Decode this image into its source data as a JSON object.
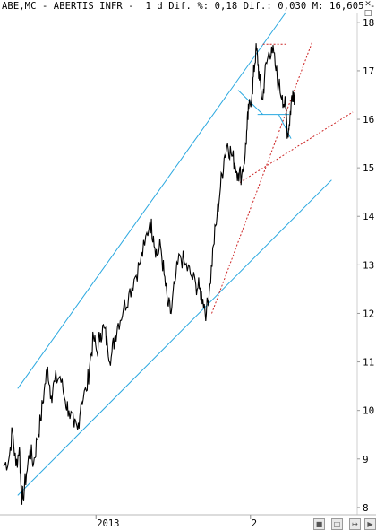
{
  "header": {
    "title": "ABE,MC - ABERTIS INFR -  1 d Dif. %: 0,18 Dif.: 0,030 M: 16,605 -"
  },
  "window_controls": {
    "restore_icon": "restore-icon",
    "close_icon": "close-icon"
  },
  "bottom_toolbar": {
    "icons": [
      "chart-settings-icon",
      "save-icon",
      "pin-icon",
      "scroll-arrow-icon"
    ]
  },
  "colors": {
    "price": "#000000",
    "channel": "#2aa8e0",
    "trendline": "#cc2222",
    "tick_label": "#000000"
  },
  "chart_data": {
    "type": "line",
    "title": "ABE,MC - ABERTIS INFR",
    "xlabel": "",
    "ylabel": "",
    "y_ticks": [
      8,
      9,
      10,
      11,
      12,
      13,
      14,
      15,
      16,
      17,
      18
    ],
    "ylim": [
      7.85,
      18.2
    ],
    "x_tick_labels": [
      {
        "label": "2013",
        "t": 0.262
      },
      {
        "label": "2",
        "t": 0.7
      }
    ],
    "series": [
      {
        "points": [
          [
            0.0,
            8.85
          ],
          [
            0.015,
            9.0
          ],
          [
            0.025,
            9.6
          ],
          [
            0.035,
            8.85
          ],
          [
            0.045,
            9.25
          ],
          [
            0.05,
            8.3
          ],
          [
            0.055,
            8.2
          ],
          [
            0.065,
            8.7
          ],
          [
            0.075,
            9.2
          ],
          [
            0.085,
            8.9
          ],
          [
            0.095,
            9.4
          ],
          [
            0.105,
            9.8
          ],
          [
            0.115,
            10.4
          ],
          [
            0.125,
            10.9
          ],
          [
            0.135,
            10.3
          ],
          [
            0.145,
            10.6
          ],
          [
            0.16,
            10.7
          ],
          [
            0.175,
            10.2
          ],
          [
            0.185,
            10.0
          ],
          [
            0.2,
            9.65
          ],
          [
            0.21,
            9.6
          ],
          [
            0.22,
            10.2
          ],
          [
            0.235,
            10.4
          ],
          [
            0.245,
            11.0
          ],
          [
            0.255,
            11.5
          ],
          [
            0.265,
            11.2
          ],
          [
            0.275,
            11.6
          ],
          [
            0.285,
            11.7
          ],
          [
            0.295,
            11.3
          ],
          [
            0.305,
            11.1
          ],
          [
            0.315,
            11.5
          ],
          [
            0.325,
            11.8
          ],
          [
            0.34,
            12.1
          ],
          [
            0.355,
            12.4
          ],
          [
            0.37,
            12.7
          ],
          [
            0.385,
            13.0
          ],
          [
            0.4,
            13.4
          ],
          [
            0.415,
            13.9
          ],
          [
            0.425,
            13.6
          ],
          [
            0.435,
            13.2
          ],
          [
            0.445,
            13.4
          ],
          [
            0.455,
            12.8
          ],
          [
            0.465,
            12.2
          ],
          [
            0.475,
            12.0
          ],
          [
            0.485,
            12.6
          ],
          [
            0.5,
            13.2
          ],
          [
            0.515,
            13.0
          ],
          [
            0.53,
            12.8
          ],
          [
            0.545,
            12.6
          ],
          [
            0.555,
            12.5
          ],
          [
            0.565,
            12.3
          ],
          [
            0.575,
            12.0
          ],
          [
            0.585,
            12.6
          ],
          [
            0.595,
            13.4
          ],
          [
            0.605,
            14.0
          ],
          [
            0.615,
            14.6
          ],
          [
            0.625,
            15.2
          ],
          [
            0.635,
            15.5
          ],
          [
            0.645,
            15.3
          ],
          [
            0.655,
            15.1
          ],
          [
            0.665,
            14.9
          ],
          [
            0.675,
            14.85
          ],
          [
            0.685,
            15.3
          ],
          [
            0.69,
            15.8
          ],
          [
            0.695,
            16.2
          ],
          [
            0.705,
            16.6
          ],
          [
            0.71,
            17.0
          ],
          [
            0.715,
            17.4
          ],
          [
            0.72,
            17.3
          ],
          [
            0.725,
            16.8
          ],
          [
            0.735,
            16.4
          ],
          [
            0.74,
            16.9
          ],
          [
            0.75,
            17.3
          ],
          [
            0.76,
            17.5
          ],
          [
            0.77,
            17.1
          ],
          [
            0.78,
            16.7
          ],
          [
            0.79,
            16.5
          ],
          [
            0.8,
            16.2
          ],
          [
            0.805,
            15.7
          ],
          [
            0.81,
            15.9
          ],
          [
            0.815,
            16.3
          ],
          [
            0.82,
            16.6
          ],
          [
            0.825,
            16.5
          ]
        ]
      }
    ],
    "annotations": [
      {
        "kind": "channel_line",
        "color": "#2aa8e0",
        "from": [
          0.04,
          10.45
        ],
        "to": [
          0.8,
          18.2
        ]
      },
      {
        "kind": "channel_line",
        "color": "#2aa8e0",
        "from": [
          0.04,
          8.25
        ],
        "to": [
          0.93,
          14.75
        ]
      },
      {
        "kind": "trend_line",
        "color": "#cc2222",
        "from": [
          0.59,
          12.0
        ],
        "to": [
          0.875,
          17.6
        ]
      },
      {
        "kind": "trend_line",
        "color": "#cc2222",
        "from": [
          0.67,
          14.7
        ],
        "to": [
          0.99,
          16.15
        ]
      },
      {
        "kind": "horizontal_line",
        "color": "#cc2222",
        "from": [
          0.735,
          17.55
        ],
        "to": [
          0.8,
          17.55
        ]
      },
      {
        "kind": "horizontal_line",
        "color": "#2aa8e0",
        "from": [
          0.72,
          16.1
        ],
        "to": [
          0.81,
          16.1
        ]
      },
      {
        "kind": "diagonal",
        "color": "#2aa8e0",
        "from": [
          0.665,
          16.6
        ],
        "to": [
          0.735,
          16.1
        ]
      },
      {
        "kind": "diagonal",
        "color": "#2aa8e0",
        "from": [
          0.78,
          16.1
        ],
        "to": [
          0.815,
          15.6
        ]
      }
    ],
    "grid": false,
    "legend": "none"
  }
}
